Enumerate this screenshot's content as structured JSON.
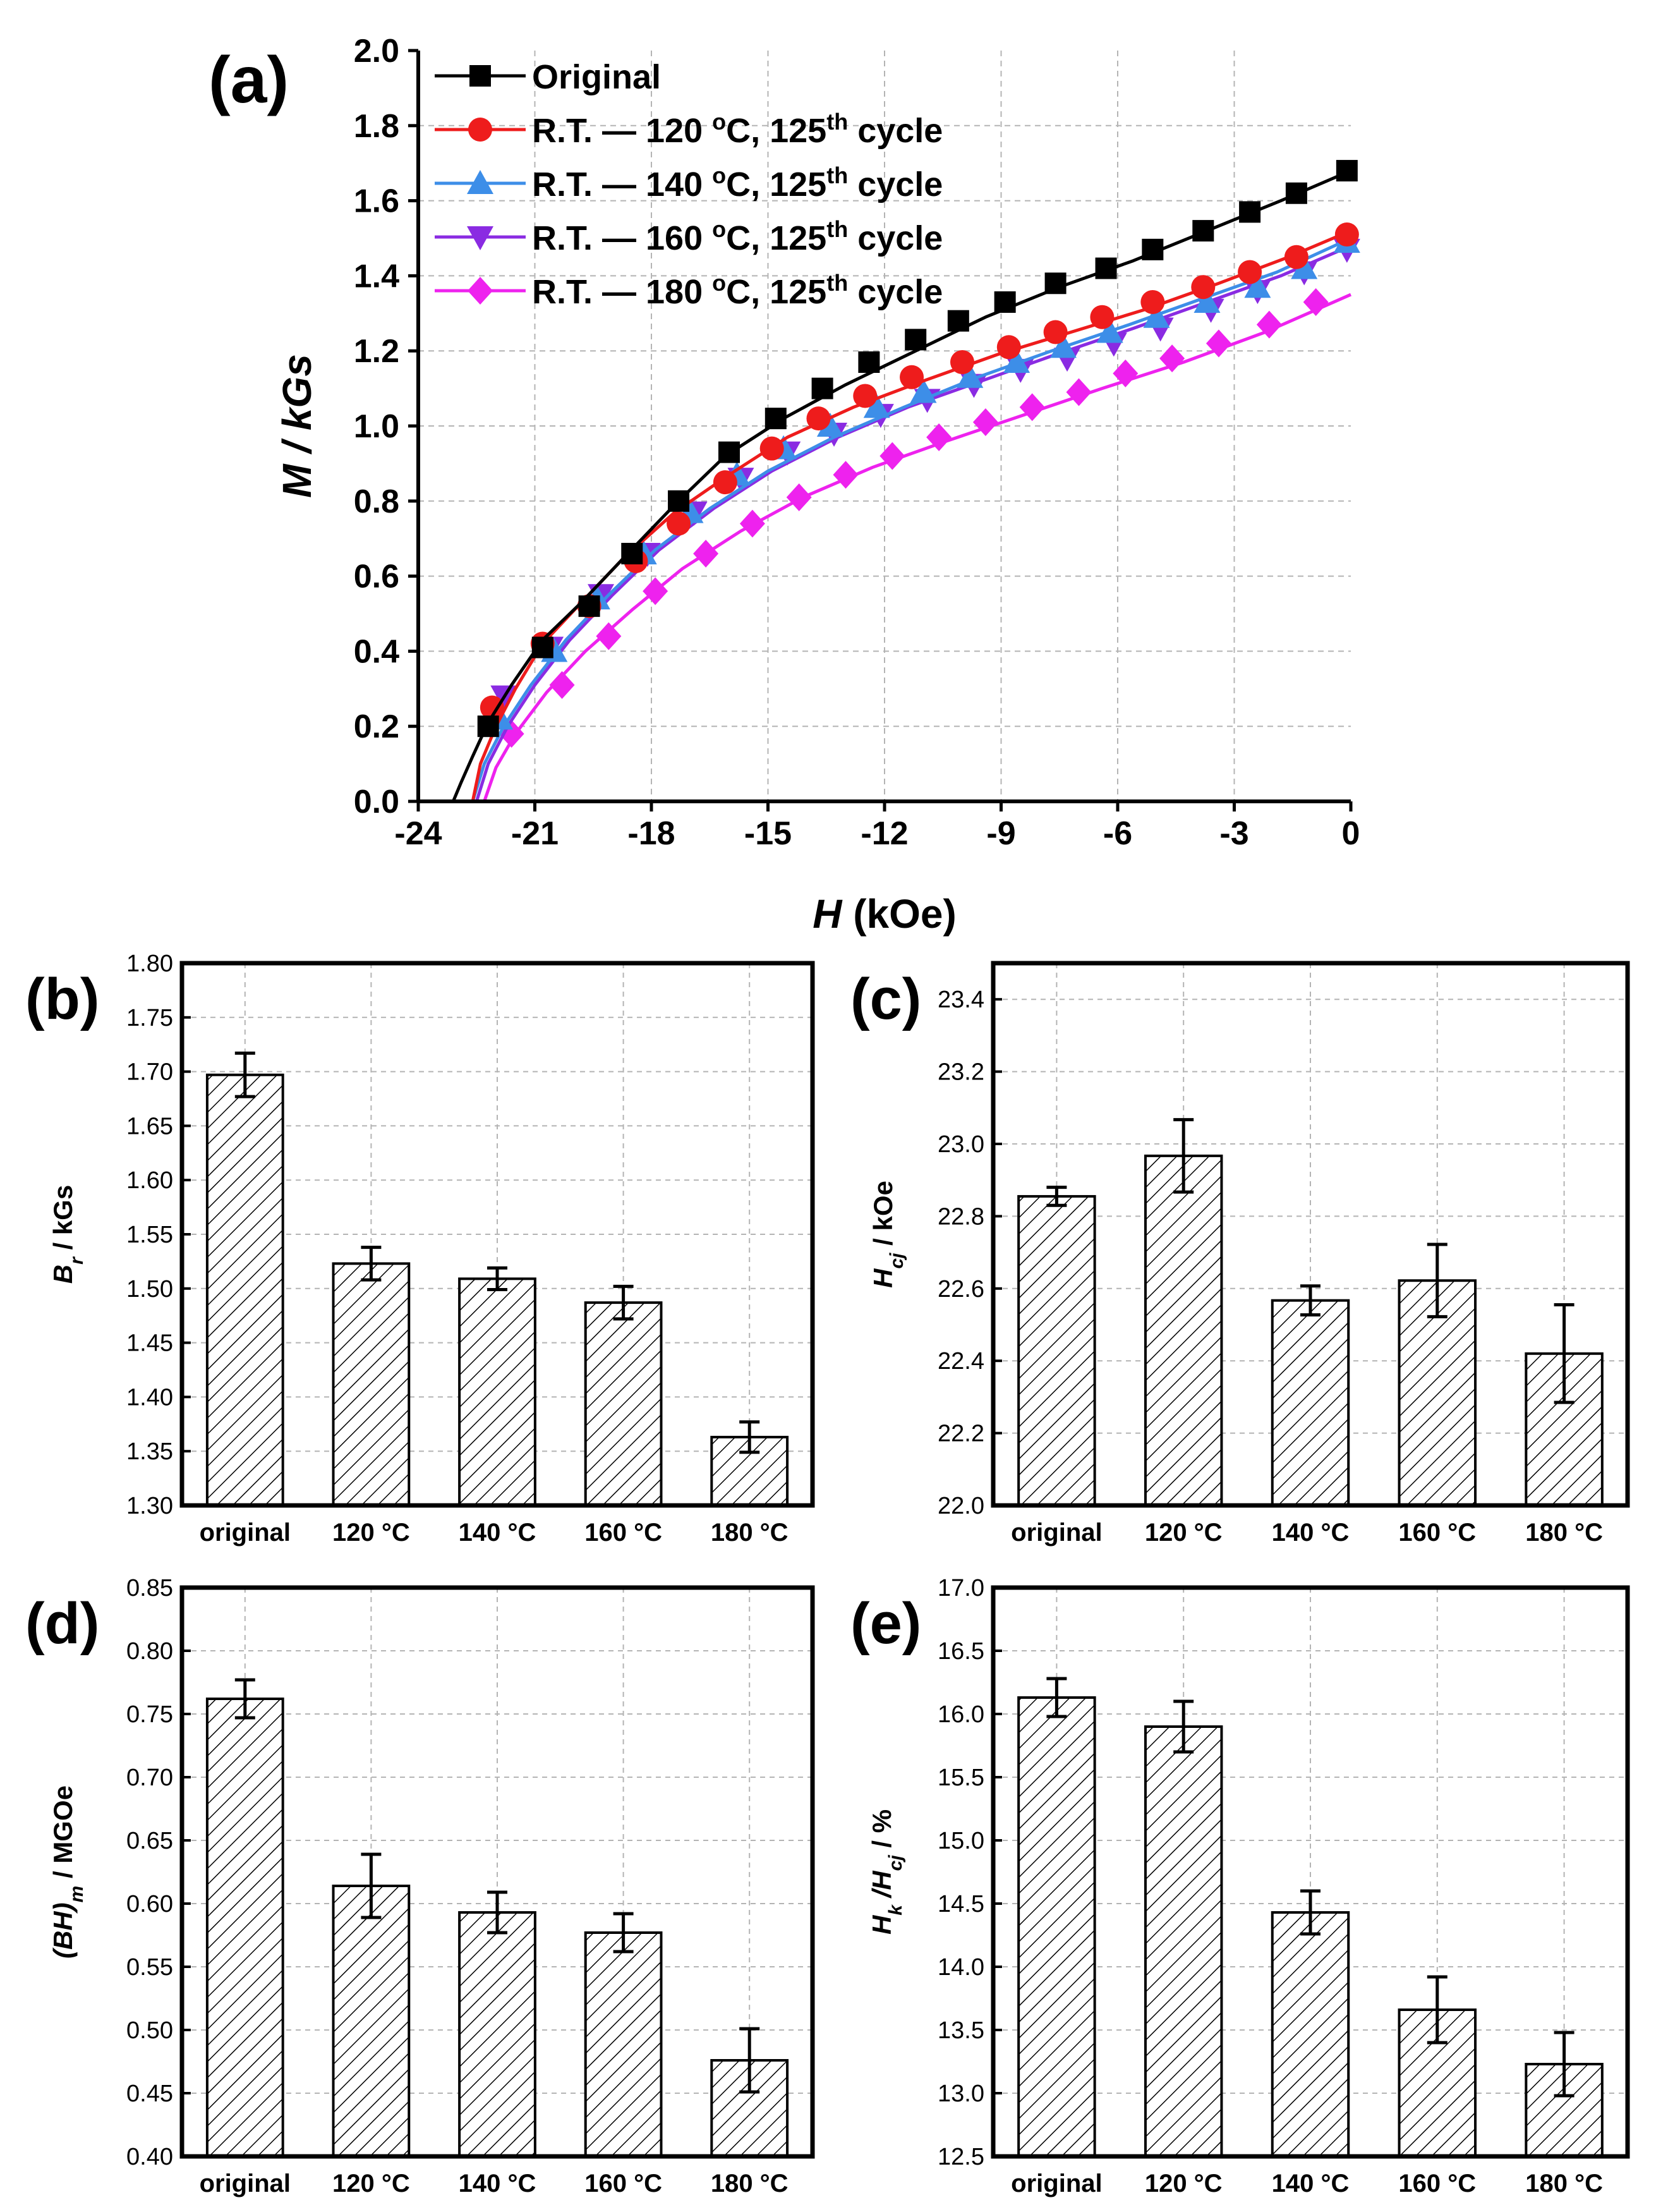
{
  "chart_data": [
    {
      "panel_label": "(a)",
      "type": "line",
      "title": "",
      "xlabel_italic": "H",
      "xlabel_rest": " (kOe)",
      "ylabel": "M / kGs",
      "xlim": [
        -24,
        0
      ],
      "ylim": [
        0,
        2.0
      ],
      "x_ticks": [
        "-24",
        "-21",
        "-18",
        "-15",
        "-12",
        "-9",
        "-6",
        "-3",
        "0"
      ],
      "y_ticks": [
        "0.0",
        "0.2",
        "0.4",
        "0.6",
        "0.8",
        "1.0",
        "1.2",
        "1.4",
        "1.6",
        "1.8",
        "2.0"
      ],
      "legend_position": "top-left",
      "series": [
        {
          "name": "Original",
          "legend_pre": "Original",
          "legend_sup": "",
          "legend_post": "",
          "legend_pre2": "",
          "legend_sup2": "",
          "legend_post2": "",
          "color": "#000000",
          "marker": "square",
          "curve_x": [
            -23.1,
            -22.9,
            -22.6,
            -22.2,
            -21.6,
            -20.8,
            -19.8,
            -18.7,
            -17.4,
            -16.1,
            -14.6,
            -13.0,
            -11.2,
            -9.4,
            -7.5,
            -5.6,
            -3.7,
            -1.8,
            0
          ],
          "curve_y": [
            0.0,
            0.05,
            0.12,
            0.21,
            0.31,
            0.43,
            0.53,
            0.65,
            0.79,
            0.92,
            1.02,
            1.11,
            1.2,
            1.29,
            1.37,
            1.44,
            1.52,
            1.6,
            1.68
          ],
          "markers_x": [
            -22.2,
            -20.8,
            -19.6,
            -18.5,
            -17.3,
            -16.0,
            -14.8,
            -13.6,
            -12.4,
            -11.2,
            -10.1,
            -8.9,
            -7.6,
            -6.3,
            -5.1,
            -3.8,
            -2.6,
            -1.4,
            -0.1
          ],
          "markers_y": [
            0.2,
            0.41,
            0.52,
            0.66,
            0.8,
            0.93,
            1.02,
            1.1,
            1.17,
            1.23,
            1.28,
            1.33,
            1.38,
            1.42,
            1.47,
            1.52,
            1.57,
            1.62,
            1.68
          ]
        },
        {
          "name": "R.T. — 120 °C, 125th cycle",
          "legend_pre": "R.T. — 120 ",
          "legend_sup": "o",
          "legend_post": "C, 125",
          "legend_pre2": "",
          "legend_sup2": "th",
          "legend_post2": " cycle",
          "color": "#ee1c1c",
          "marker": "circle",
          "curve_x": [
            -22.6,
            -22.4,
            -22.0,
            -21.5,
            -20.8,
            -19.8,
            -18.7,
            -17.4,
            -16.0,
            -14.5,
            -12.8,
            -11.0,
            -9.1,
            -7.2,
            -5.3,
            -3.4,
            -1.6,
            0
          ],
          "curve_y": [
            0.0,
            0.1,
            0.2,
            0.3,
            0.42,
            0.53,
            0.65,
            0.77,
            0.87,
            0.97,
            1.05,
            1.12,
            1.19,
            1.25,
            1.31,
            1.38,
            1.45,
            1.52
          ],
          "markers_x": [
            -22.1,
            -20.8,
            -19.6,
            -18.4,
            -17.3,
            -16.1,
            -14.9,
            -13.7,
            -12.5,
            -11.3,
            -10.0,
            -8.8,
            -7.6,
            -6.4,
            -5.1,
            -3.8,
            -2.6,
            -1.4,
            -0.1
          ],
          "markers_y": [
            0.25,
            0.42,
            0.52,
            0.64,
            0.74,
            0.85,
            0.94,
            1.02,
            1.08,
            1.13,
            1.17,
            1.21,
            1.25,
            1.29,
            1.33,
            1.37,
            1.41,
            1.45,
            1.51
          ]
        },
        {
          "name": "R.T. — 140 °C, 125th cycle",
          "legend_pre": "R.T. — 140 ",
          "legend_sup": "o",
          "legend_post": "C, 125",
          "legend_pre2": "",
          "legend_sup2": "th",
          "legend_post2": " cycle",
          "color": "#3d8ee8",
          "marker": "triangle-up",
          "curve_x": [
            -22.6,
            -22.3,
            -21.8,
            -21.1,
            -20.2,
            -19.1,
            -17.9,
            -16.5,
            -15.0,
            -13.3,
            -11.5,
            -9.6,
            -7.7,
            -5.7,
            -3.8,
            -1.9,
            0
          ],
          "curve_y": [
            0.0,
            0.1,
            0.2,
            0.31,
            0.43,
            0.55,
            0.67,
            0.78,
            0.88,
            0.97,
            1.05,
            1.13,
            1.2,
            1.27,
            1.34,
            1.41,
            1.5
          ],
          "markers_x": [
            -21.9,
            -20.5,
            -19.4,
            -18.2,
            -17.0,
            -15.8,
            -14.6,
            -13.4,
            -12.2,
            -11.0,
            -9.8,
            -8.6,
            -7.4,
            -6.2,
            -5.0,
            -3.7,
            -2.4,
            -1.2,
            -0.1
          ],
          "markers_y": [
            0.22,
            0.4,
            0.54,
            0.66,
            0.77,
            0.87,
            0.94,
            1.0,
            1.05,
            1.09,
            1.13,
            1.17,
            1.21,
            1.25,
            1.29,
            1.33,
            1.37,
            1.42,
            1.49
          ]
        },
        {
          "name": "R.T. — 160 °C, 125th cycle",
          "legend_pre": "R.T. — 160 ",
          "legend_sup": "o",
          "legend_post": "C, 125",
          "legend_pre2": "",
          "legend_sup2": "th",
          "legend_post2": " cycle",
          "color": "#8a2be2",
          "marker": "triangle-down",
          "curve_x": [
            -22.5,
            -22.2,
            -21.7,
            -21.0,
            -20.1,
            -19.0,
            -17.8,
            -16.4,
            -14.9,
            -13.2,
            -11.4,
            -9.5,
            -7.6,
            -5.6,
            -3.7,
            -1.8,
            0
          ],
          "curve_y": [
            0.0,
            0.1,
            0.2,
            0.31,
            0.43,
            0.55,
            0.67,
            0.78,
            0.88,
            0.97,
            1.05,
            1.12,
            1.19,
            1.26,
            1.33,
            1.4,
            1.48
          ],
          "markers_x": [
            -21.8,
            -20.6,
            -19.3,
            -18.1,
            -16.9,
            -15.7,
            -14.5,
            -13.3,
            -12.1,
            -10.9,
            -9.7,
            -8.5,
            -7.3,
            -6.1,
            -4.9,
            -3.6,
            -2.4,
            -1.2,
            -0.1
          ],
          "markers_y": [
            0.28,
            0.41,
            0.55,
            0.66,
            0.77,
            0.86,
            0.93,
            0.98,
            1.03,
            1.07,
            1.11,
            1.15,
            1.18,
            1.22,
            1.26,
            1.31,
            1.36,
            1.41,
            1.47
          ]
        },
        {
          "name": "R.T. — 180 °C, 125th cycle",
          "legend_pre": "R.T. — 180 ",
          "legend_sup": "o",
          "legend_post": "C, 125",
          "legend_pre2": "",
          "legend_sup2": "th",
          "legend_post2": " cycle",
          "color": "#ee22ee",
          "marker": "diamond",
          "curve_x": [
            -22.3,
            -22.0,
            -21.5,
            -20.7,
            -19.7,
            -18.5,
            -17.2,
            -15.7,
            -14.1,
            -12.3,
            -10.4,
            -8.4,
            -6.4,
            -4.3,
            -2.2,
            0
          ],
          "curve_y": [
            0.0,
            0.09,
            0.18,
            0.29,
            0.4,
            0.51,
            0.62,
            0.72,
            0.81,
            0.89,
            0.96,
            1.03,
            1.1,
            1.17,
            1.25,
            1.35
          ],
          "markers_x": [
            -21.6,
            -20.3,
            -19.1,
            -17.9,
            -16.6,
            -15.4,
            -14.2,
            -13.0,
            -11.8,
            -10.6,
            -9.4,
            -8.2,
            -7.0,
            -5.8,
            -4.6,
            -3.4,
            -2.1,
            -0.9
          ],
          "markers_y": [
            0.18,
            0.31,
            0.44,
            0.56,
            0.66,
            0.74,
            0.81,
            0.87,
            0.92,
            0.97,
            1.01,
            1.05,
            1.09,
            1.14,
            1.18,
            1.22,
            1.27,
            1.33
          ]
        }
      ]
    },
    {
      "panel_label": "(b)",
      "type": "bar",
      "title": "",
      "xlabel": "",
      "ylabel_main": "B",
      "ylabel_sub": "r",
      "ylabel_sub2": "",
      "ylabel_rest": " / kGs",
      "ylim": [
        1.3,
        1.8
      ],
      "y_ticks": [
        "1.30",
        "1.35",
        "1.40",
        "1.45",
        "1.50",
        "1.55",
        "1.60",
        "1.65",
        "1.70",
        "1.75",
        "1.80"
      ],
      "categories": [
        "original",
        "120 °C",
        "140 °C",
        "160 °C",
        "180 °C"
      ],
      "values": [
        1.697,
        1.523,
        1.509,
        1.487,
        1.363
      ],
      "errors": [
        0.02,
        0.015,
        0.01,
        0.015,
        0.014
      ]
    },
    {
      "panel_label": "(c)",
      "type": "bar",
      "title": "",
      "xlabel": "",
      "ylabel_main": "H",
      "ylabel_sub": "cj",
      "ylabel_sub2": "",
      "ylabel_rest": " / kOe",
      "ylim": [
        22.0,
        23.5
      ],
      "y_ticks": [
        "22.0",
        "22.2",
        "22.4",
        "22.6",
        "22.8",
        "23.0",
        "23.2",
        "23.4"
      ],
      "categories": [
        "original",
        "120 °C",
        "140 °C",
        "160 °C",
        "180 °C"
      ],
      "values": [
        22.855,
        22.967,
        22.567,
        22.622,
        22.42
      ],
      "errors": [
        0.025,
        0.1,
        0.04,
        0.1,
        0.135
      ]
    },
    {
      "panel_label": "(d)",
      "type": "bar",
      "title": "",
      "xlabel": "",
      "ylabel_main": "(BH)",
      "ylabel_sub": "m",
      "ylabel_sub2": "",
      "ylabel_rest": " / MGOe",
      "ylim": [
        0.4,
        0.85
      ],
      "y_ticks": [
        "0.40",
        "0.45",
        "0.50",
        "0.55",
        "0.60",
        "0.65",
        "0.70",
        "0.75",
        "0.80",
        "0.85"
      ],
      "categories": [
        "original",
        "120 °C",
        "140 °C",
        "160 °C",
        "180 °C"
      ],
      "values": [
        0.762,
        0.614,
        0.593,
        0.577,
        0.476
      ],
      "errors": [
        0.015,
        0.025,
        0.016,
        0.015,
        0.025
      ]
    },
    {
      "panel_label": "(e)",
      "type": "bar",
      "title": "",
      "xlabel": "",
      "ylabel_main": "H",
      "ylabel_sub": "k",
      "ylabel_mid": " /H",
      "ylabel_sub2": "cj",
      "ylabel_rest": "  / %",
      "ylim": [
        12.5,
        17.0
      ],
      "y_ticks": [
        "12.5",
        "13.0",
        "13.5",
        "14.0",
        "14.5",
        "15.0",
        "15.5",
        "16.0",
        "16.5",
        "17.0"
      ],
      "categories": [
        "original",
        "120 °C",
        "140 °C",
        "160 °C",
        "180 °C"
      ],
      "values": [
        16.13,
        15.9,
        14.43,
        13.66,
        13.23
      ],
      "errors": [
        0.15,
        0.2,
        0.17,
        0.26,
        0.25
      ]
    }
  ]
}
